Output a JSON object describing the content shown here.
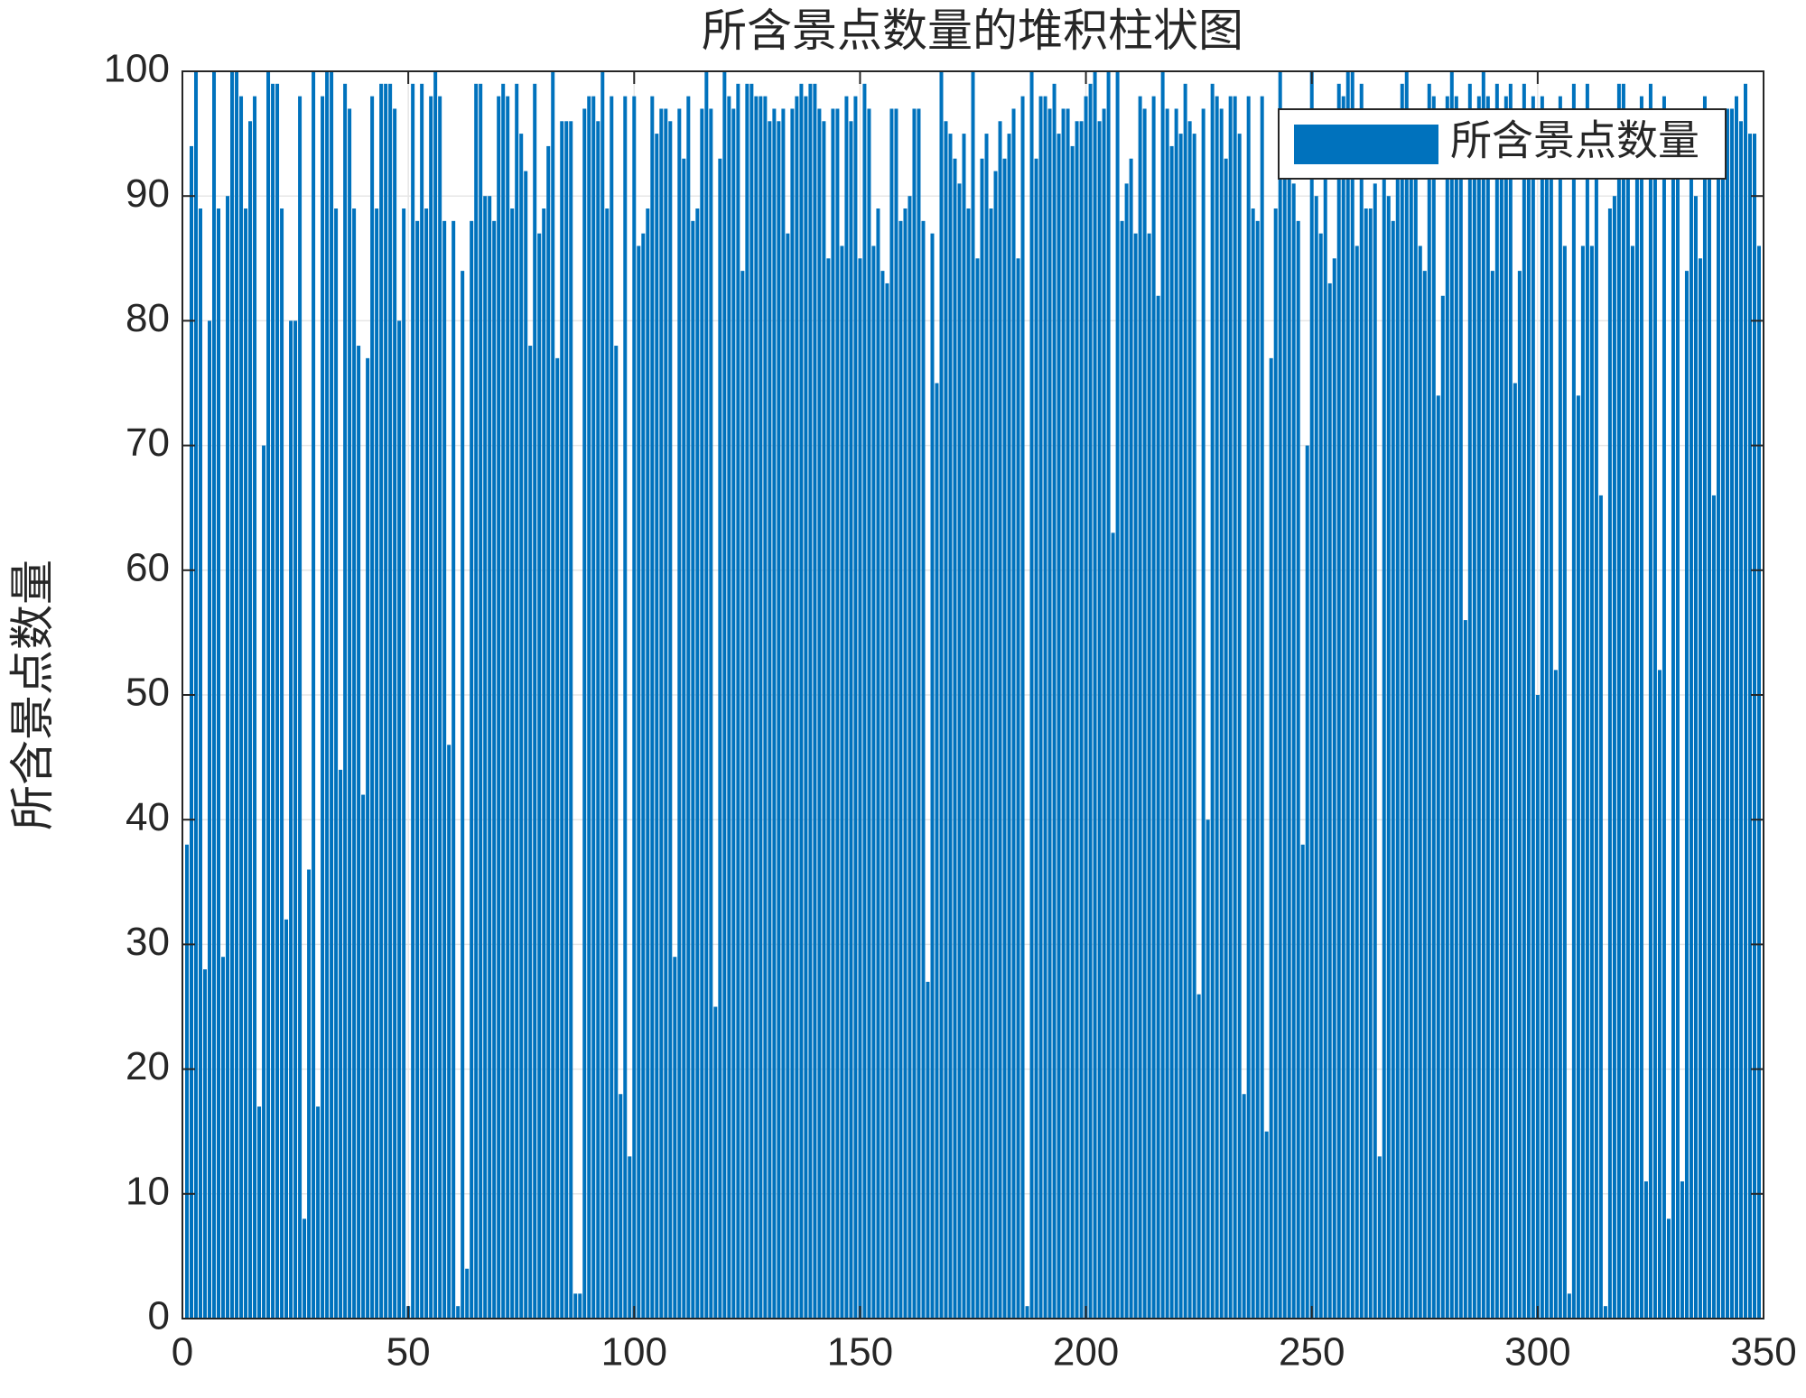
{
  "chart_data": {
    "type": "bar",
    "title": "所含景点数量的堆积柱状图",
    "ylabel": "所含景点数量",
    "x": [
      1,
      2,
      3,
      4,
      5,
      6,
      7,
      8,
      9,
      10,
      11,
      12,
      13,
      14,
      15,
      16,
      17,
      18,
      19,
      20,
      21,
      22,
      23,
      24,
      25,
      26,
      27,
      28,
      29,
      30,
      31,
      32,
      33,
      34,
      35,
      36,
      37,
      38,
      39,
      40,
      41,
      42,
      43,
      44,
      45,
      46,
      47,
      48,
      49,
      50,
      51,
      52,
      53,
      54,
      55,
      56,
      57,
      58,
      59,
      60,
      61,
      62,
      63,
      64,
      65,
      66,
      67,
      68,
      69,
      70,
      71,
      72,
      73,
      74,
      75,
      76,
      77,
      78,
      79,
      80,
      81,
      82,
      83,
      84,
      85,
      86,
      87,
      88,
      89,
      90,
      91,
      92,
      93,
      94,
      95,
      96,
      97,
      98,
      99,
      100,
      101,
      102,
      103,
      104,
      105,
      106,
      107,
      108,
      109,
      110,
      111,
      112,
      113,
      114,
      115,
      116,
      117,
      118,
      119,
      120,
      121,
      122,
      123,
      124,
      125,
      126,
      127,
      128,
      129,
      130,
      131,
      132,
      133,
      134,
      135,
      136,
      137,
      138,
      139,
      140,
      141,
      142,
      143,
      144,
      145,
      146,
      147,
      148,
      149,
      150,
      151,
      152,
      153,
      154,
      155,
      156,
      157,
      158,
      159,
      160,
      161,
      162,
      163,
      164,
      165,
      166,
      167,
      168,
      169,
      170,
      171,
      172,
      173,
      174,
      175,
      176,
      177,
      178,
      179,
      180,
      181,
      182,
      183,
      184,
      185,
      186,
      187,
      188,
      189,
      190,
      191,
      192,
      193,
      194,
      195,
      196,
      197,
      198,
      199,
      200,
      201,
      202,
      203,
      204,
      205,
      206,
      207,
      208,
      209,
      210,
      211,
      212,
      213,
      214,
      215,
      216,
      217,
      218,
      219,
      220,
      221,
      222,
      223,
      224,
      225,
      226,
      227,
      228,
      229,
      230,
      231,
      232,
      233,
      234,
      235,
      236,
      237,
      238,
      239,
      240,
      241,
      242,
      243,
      244,
      245,
      246,
      247,
      248,
      249,
      250,
      251,
      252,
      253,
      254,
      255,
      256,
      257,
      258,
      259,
      260,
      261,
      262,
      263,
      264,
      265,
      266,
      267,
      268,
      269,
      270,
      271,
      272,
      273,
      274,
      275,
      276,
      277,
      278,
      279,
      280,
      281,
      282,
      283,
      284,
      285,
      286,
      287,
      288,
      289,
      290,
      291,
      292,
      293,
      294,
      295,
      296,
      297,
      298,
      299,
      300,
      301,
      302,
      303,
      304,
      305,
      306,
      307,
      308,
      309,
      310,
      311,
      312,
      313,
      314,
      315,
      316,
      317,
      318,
      319,
      320,
      321,
      322,
      323,
      324,
      325,
      326,
      327,
      328,
      329,
      330,
      331,
      332,
      333,
      334,
      335,
      336,
      337,
      338,
      339,
      340,
      341,
      342,
      343,
      344,
      345,
      346,
      347,
      348,
      349
    ],
    "series": [
      {
        "name": "所含景点数量",
        "color": "#0072bd",
        "values": [
          38,
          94,
          100,
          89,
          28,
          80,
          100,
          89,
          29,
          90,
          100,
          100,
          98,
          89,
          96,
          98,
          17,
          70,
          100,
          99,
          99,
          89,
          32,
          80,
          80,
          98,
          8,
          36,
          100,
          17,
          98,
          100,
          100,
          89,
          44,
          99,
          97,
          89,
          78,
          42,
          77,
          98,
          89,
          99,
          99,
          99,
          97,
          80,
          89,
          1,
          99,
          88,
          99,
          89,
          98,
          100,
          98,
          88,
          46,
          88,
          1,
          84,
          4,
          88,
          99,
          99,
          90,
          90,
          88,
          98,
          99,
          98,
          89,
          99,
          95,
          92,
          78,
          99,
          87,
          89,
          94,
          100,
          77,
          96,
          96,
          96,
          2,
          2,
          97,
          98,
          98,
          96,
          100,
          89,
          98,
          78,
          18,
          98,
          13,
          98,
          86,
          87,
          89,
          98,
          95,
          97,
          97,
          96,
          29,
          97,
          93,
          98,
          88,
          89,
          97,
          100,
          97,
          25,
          93,
          100,
          98,
          97,
          99,
          84,
          99,
          99,
          98,
          98,
          98,
          96,
          97,
          96,
          97,
          87,
          97,
          98,
          99,
          98,
          99,
          99,
          97,
          96,
          85,
          97,
          97,
          86,
          98,
          96,
          98,
          85,
          99,
          97,
          86,
          89,
          84,
          83,
          97,
          97,
          88,
          89,
          90,
          97,
          97,
          88,
          27,
          87,
          75,
          100,
          96,
          95,
          93,
          91,
          95,
          89,
          100,
          85,
          93,
          95,
          89,
          92,
          96,
          93,
          95,
          97,
          85,
          98,
          1,
          100,
          93,
          98,
          98,
          97,
          99,
          95,
          97,
          97,
          94,
          96,
          96,
          98,
          99,
          100,
          96,
          97,
          100,
          63,
          100,
          88,
          91,
          93,
          87,
          98,
          97,
          87,
          98,
          82,
          100,
          97,
          94,
          97,
          95,
          99,
          96,
          95,
          26,
          97,
          40,
          99,
          98,
          97,
          93,
          98,
          98,
          95,
          18,
          98,
          89,
          88,
          98,
          15,
          77,
          89,
          100,
          93,
          96,
          91,
          88,
          38,
          70,
          100,
          90,
          87,
          96,
          83,
          85,
          99,
          98,
          100,
          100,
          86,
          99,
          89,
          89,
          91,
          13,
          97,
          90,
          88,
          97,
          99,
          100,
          92,
          96,
          86,
          84,
          99,
          98,
          74,
          82,
          98,
          100,
          98,
          92,
          56,
          99,
          97,
          98,
          100,
          98,
          84,
          99,
          97,
          98,
          99,
          75,
          84,
          99,
          97,
          98,
          50,
          98,
          92,
          97,
          52,
          98,
          86,
          2,
          99,
          74,
          86,
          99,
          86,
          92,
          66,
          1,
          89,
          90,
          99,
          99,
          97,
          86,
          92,
          98,
          11,
          99,
          96,
          52,
          98,
          8,
          97,
          92,
          11,
          84,
          96,
          90,
          85,
          98,
          96,
          66,
          95,
          97,
          97,
          97,
          98,
          96,
          99,
          95,
          95,
          86
        ]
      }
    ],
    "xlim": [
      0,
      350
    ],
    "ylim": [
      0,
      100
    ],
    "xticks": [
      0,
      50,
      100,
      150,
      200,
      250,
      300,
      350
    ],
    "yticks": [
      0,
      10,
      20,
      30,
      40,
      50,
      60,
      70,
      80,
      90,
      100
    ],
    "grid": true,
    "legend": "northeast"
  }
}
